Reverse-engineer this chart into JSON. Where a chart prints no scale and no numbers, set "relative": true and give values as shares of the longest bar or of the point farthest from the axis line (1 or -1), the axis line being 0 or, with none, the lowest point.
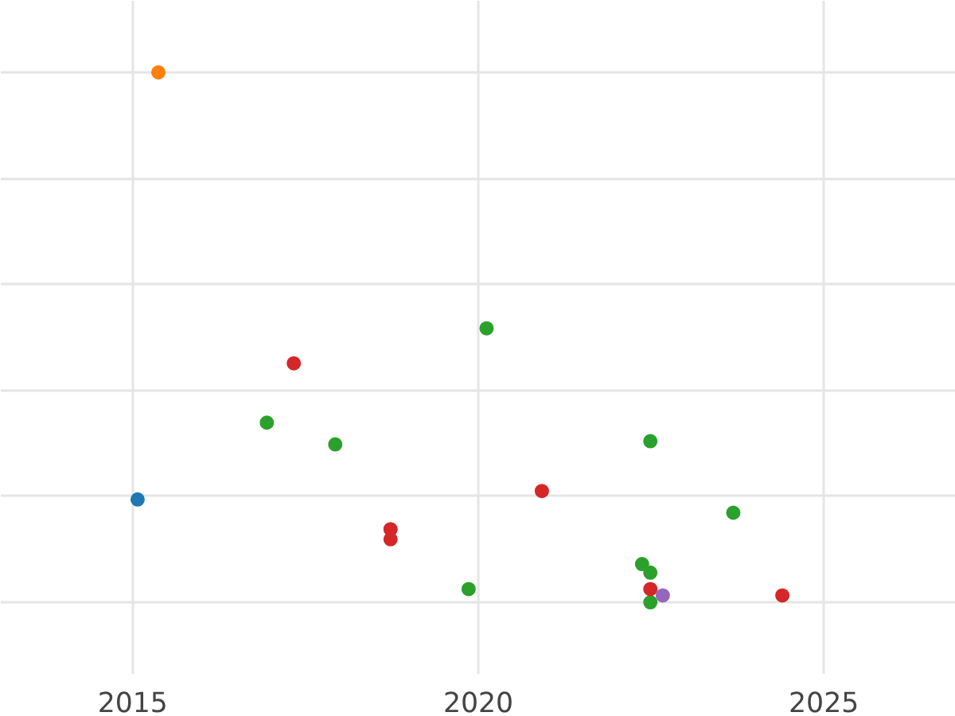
{
  "chart_data": {
    "type": "scatter",
    "relative": true,
    "xlim": [
      2013.09,
      2026.91
    ],
    "xticks": [
      2015,
      2020,
      2025
    ],
    "grid": true,
    "marker": "circle",
    "series": [
      {
        "color": "#1f77b4",
        "x": [
          2015.07
        ],
        "values": [
          0.194
        ]
      },
      {
        "color": "#ff7f0e",
        "x": [
          2015.37
        ],
        "values": [
          1.0
        ]
      },
      {
        "color": "#2ca02c",
        "x": [
          2016.94,
          2017.93,
          2019.86,
          2020.12,
          2022.37,
          2022.49,
          2022.49,
          2022.49,
          2023.69
        ],
        "values": [
          0.339,
          0.298,
          0.025,
          0.517,
          0.072,
          0.304,
          0.056,
          0.0,
          0.169
        ]
      },
      {
        "color": "#d62728",
        "x": [
          2017.33,
          2018.73,
          2018.73,
          2020.92,
          2022.49,
          2024.4
        ],
        "values": [
          0.451,
          0.138,
          0.119,
          0.21,
          0.025,
          0.013
        ]
      },
      {
        "color": "#9467bd",
        "x": [
          2022.67
        ],
        "values": [
          0.013
        ]
      }
    ]
  }
}
